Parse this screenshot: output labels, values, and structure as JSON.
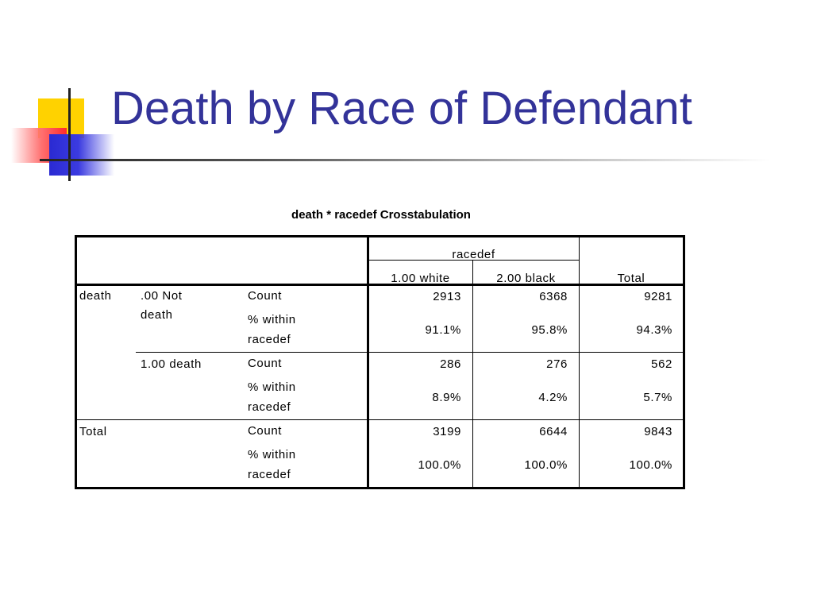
{
  "slide": {
    "title": "Death by Race of Defendant"
  },
  "logo": {
    "name": "decorative-slide-logo",
    "colors": {
      "yellow": "#ffd200",
      "red": "#ff2a2a",
      "blue": "#2a2ad2"
    }
  },
  "table": {
    "caption": "death * racedef Crosstabulation",
    "column_group_label": "racedef",
    "column_headers": [
      "1.00  white",
      "2.00  black",
      "Total"
    ],
    "row_variable": "death",
    "total_label": "Total",
    "category_labels": {
      "not_death_line1": ".00  Not",
      "not_death_line2": "death",
      "death": "1.00  death"
    },
    "stat_labels": {
      "count": "Count",
      "pct_line1": "% within",
      "pct_line2": "racedef"
    },
    "rows": {
      "not_death": {
        "count": [
          "2913",
          "6368",
          "9281"
        ],
        "pct": [
          "91.1%",
          "95.8%",
          "94.3%"
        ]
      },
      "death": {
        "count": [
          "286",
          "276",
          "562"
        ],
        "pct": [
          "8.9%",
          "4.2%",
          "5.7%"
        ]
      },
      "total": {
        "count": [
          "3199",
          "6644",
          "9843"
        ],
        "pct": [
          "100.0%",
          "100.0%",
          "100.0%"
        ]
      }
    }
  },
  "theme": {
    "title_color": "#333399",
    "text_color": "#000000"
  }
}
